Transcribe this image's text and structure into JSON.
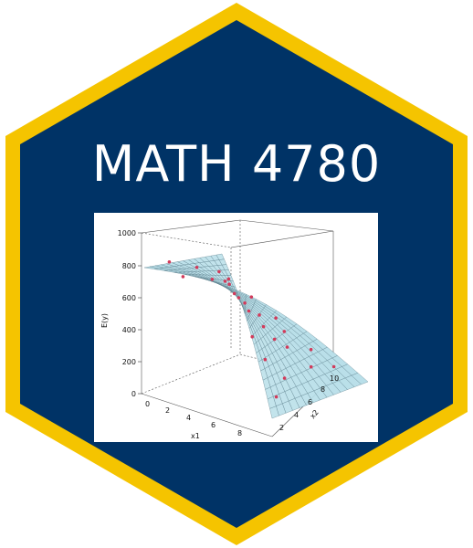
{
  "badge": {
    "title": "MATH 4780",
    "fill_color": "#003366",
    "border_color": "#f5c400"
  },
  "plot": {
    "type": "3d-surface",
    "z_label": "E(y)",
    "x1_label": "x1",
    "x2_label": "x2",
    "z_ticks": [
      "1000",
      "800",
      "600",
      "400",
      "200",
      "0"
    ],
    "x1_ticks": [
      "0",
      "2",
      "4",
      "6",
      "8"
    ],
    "x2_ticks": [
      "2",
      "4",
      "6",
      "8",
      "10"
    ],
    "surface_color": "#b9dfe9",
    "point_color": "#d23a5a"
  }
}
